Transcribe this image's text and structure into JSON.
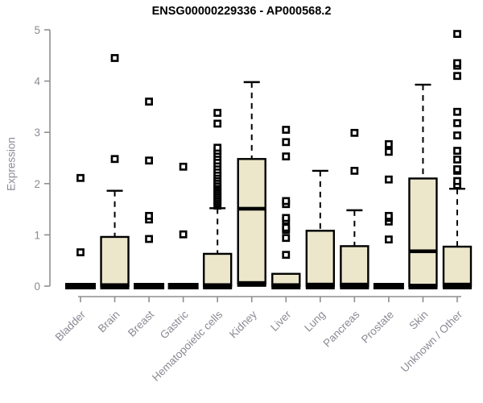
{
  "page": {
    "background": "#ffffff"
  },
  "chart_data": {
    "type": "boxplot",
    "title": "ENSG00000229336 - AP000568.2",
    "ylabel": "Expression",
    "xlabel": "",
    "ylim": [
      0,
      5
    ],
    "yticks": [
      0,
      1,
      2,
      3,
      4,
      5
    ],
    "grid": false,
    "legend": "none",
    "colors": {
      "box_fill": "#ece7cb",
      "box_stroke": "#000000",
      "whisker": "#000000",
      "outlier": "#000000",
      "axis": "#8f8f8f",
      "tick_label": "#8a8a94",
      "title": "#000000",
      "background": "#ffffff"
    },
    "categories": [
      "Bladder",
      "Brain",
      "Breast",
      "Gastric",
      "Hematopoietic cells",
      "Kidney",
      "Liver",
      "Lung",
      "Pancreas",
      "Prostate",
      "Skin",
      "Unknown / Other"
    ],
    "boxes": [
      {
        "category": "Bladder",
        "q1": 0,
        "median": 0,
        "q3": 0.04,
        "whisker_low": 0,
        "whisker_high": 0.04,
        "outliers": [
          0.66,
          2.11
        ]
      },
      {
        "category": "Brain",
        "q1": 0,
        "median": 0.02,
        "q3": 0.96,
        "whisker_low": 0,
        "whisker_high": 1.86,
        "outliers": [
          2.48,
          4.45
        ]
      },
      {
        "category": "Breast",
        "q1": 0,
        "median": 0,
        "q3": 0.04,
        "whisker_low": 0,
        "whisker_high": 0.04,
        "outliers": [
          0.92,
          1.3,
          1.37,
          2.45,
          3.6
        ]
      },
      {
        "category": "Gastric",
        "q1": 0,
        "median": 0,
        "q3": 0.04,
        "whisker_low": 0,
        "whisker_high": 0.04,
        "outliers": [
          1.01,
          2.33
        ]
      },
      {
        "category": "Hematopoietic cells",
        "q1": 0,
        "median": 0.02,
        "q3": 0.63,
        "whisker_low": 0,
        "whisker_high": 1.52,
        "outliers": [
          1.57,
          1.61,
          1.65,
          1.69,
          1.73,
          1.77,
          1.81,
          1.85,
          1.89,
          1.93,
          1.97,
          2.01,
          2.06,
          2.11,
          2.16,
          2.21,
          2.27,
          2.33,
          2.39,
          2.45,
          2.52,
          2.58,
          2.64,
          2.7,
          3.17,
          3.38
        ]
      },
      {
        "category": "Kidney",
        "q1": 0.05,
        "median": 1.51,
        "q3": 2.48,
        "whisker_low": 0,
        "whisker_high": 3.98,
        "outliers": []
      },
      {
        "category": "Liver",
        "q1": 0,
        "median": 0.02,
        "q3": 0.24,
        "whisker_low": 0,
        "whisker_high": 0.24,
        "outliers": [
          0.61,
          0.94,
          1.1,
          1.14,
          1.28,
          1.33,
          1.6,
          1.66,
          2.53,
          2.81,
          3.05
        ]
      },
      {
        "category": "Lung",
        "q1": 0,
        "median": 0.03,
        "q3": 1.08,
        "whisker_low": 0,
        "whisker_high": 2.25,
        "outliers": []
      },
      {
        "category": "Pancreas",
        "q1": 0,
        "median": 0.03,
        "q3": 0.78,
        "whisker_low": 0,
        "whisker_high": 1.48,
        "outliers": [
          2.25,
          2.99
        ]
      },
      {
        "category": "Prostate",
        "q1": 0,
        "median": 0,
        "q3": 0.04,
        "whisker_low": 0,
        "whisker_high": 0.04,
        "outliers": [
          0.91,
          1.26,
          1.33,
          1.37,
          2.08,
          2.62,
          2.77
        ]
      },
      {
        "category": "Skin",
        "q1": 0,
        "median": 0.68,
        "q3": 2.1,
        "whisker_low": 0,
        "whisker_high": 3.93,
        "outliers": []
      },
      {
        "category": "Unknown / Other",
        "q1": 0,
        "median": 0.03,
        "q3": 0.77,
        "whisker_low": 0,
        "whisker_high": 1.9,
        "outliers": [
          1.97,
          2.05,
          2.25,
          2.28,
          2.47,
          2.64,
          2.94,
          3.18,
          3.4,
          4.1,
          4.3,
          4.35,
          4.92
        ]
      }
    ]
  }
}
